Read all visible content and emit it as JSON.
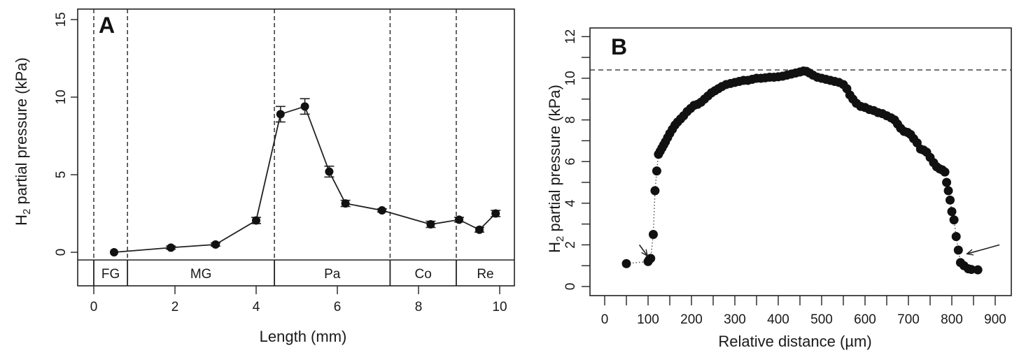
{
  "chart_data": [
    {
      "panel": "A",
      "type": "line",
      "title": "",
      "panel_label": "A",
      "xlabel": "Length (mm)",
      "ylabel_main": "H",
      "ylabel_sub": "2",
      "ylabel_rest": " partial pressure (kPa)",
      "xlim": [
        -0.4,
        10.4
      ],
      "ylim": [
        -0.5,
        15.5
      ],
      "xticks": [
        0,
        2,
        4,
        6,
        8,
        10
      ],
      "xtick_labels": [
        "0",
        "2",
        "4",
        "6",
        "8",
        "10"
      ],
      "yticks": [
        0,
        5,
        10,
        15
      ],
      "ytick_labels": [
        "0",
        "5",
        "10",
        "15"
      ],
      "grid": false,
      "series": [
        {
          "name": "H2 partial pressure",
          "marker": "filled-circle",
          "x": [
            0.5,
            1.9,
            3.0,
            4.0,
            4.6,
            5.2,
            5.8,
            6.2,
            7.1,
            8.3,
            9.0,
            9.5,
            9.9
          ],
          "y": [
            0.0,
            0.3,
            0.5,
            2.05,
            8.9,
            9.4,
            5.2,
            3.15,
            2.7,
            1.8,
            2.1,
            1.45,
            2.5
          ],
          "error": [
            0.05,
            0.1,
            0.1,
            0.2,
            0.5,
            0.5,
            0.35,
            0.2,
            0.1,
            0.2,
            0.15,
            0.15,
            0.2
          ]
        }
      ],
      "region_boundaries": [
        0,
        0.83,
        4.45,
        7.3,
        8.93
      ],
      "regions": [
        {
          "label": "FG",
          "from": 0,
          "to": 0.83
        },
        {
          "label": "MG",
          "from": 0.83,
          "to": 4.45
        },
        {
          "label": "Pa",
          "from": 4.45,
          "to": 7.3
        },
        {
          "label": "Co",
          "from": 7.3,
          "to": 8.93
        },
        {
          "label": "Re",
          "from": 8.93,
          "to": 10.4
        }
      ]
    },
    {
      "panel": "B",
      "type": "scatter",
      "title": "",
      "panel_label": "B",
      "xlabel": "Relative distance (µm)",
      "ylabel_main": "H",
      "ylabel_sub": "2",
      "ylabel_rest": " partial pressure (kPa)",
      "xlim": [
        -35,
        935
      ],
      "ylim": [
        -0.45,
        12.45
      ],
      "xticks": [
        0,
        100,
        200,
        300,
        400,
        500,
        600,
        700,
        800,
        900
      ],
      "xtick_labels": [
        "0",
        "100",
        "200",
        "300",
        "400",
        "500",
        "600",
        "700",
        "800",
        "900"
      ],
      "x_minor_ticks": [
        50,
        150,
        250,
        350,
        450,
        550,
        650,
        750,
        850
      ],
      "yticks": [
        0,
        2,
        4,
        6,
        8,
        10,
        12
      ],
      "ytick_labels": [
        "0",
        "2",
        "4",
        "6",
        "8",
        "10",
        "12"
      ],
      "y_minor_ticks": [
        1,
        3,
        5,
        7,
        9,
        11
      ],
      "grid": false,
      "reference_line_y": 10.4,
      "arrows": [
        {
          "points_to": [
            105,
            1.4
          ],
          "from": [
            80,
            2.0
          ]
        },
        {
          "points_to": [
            825,
            1.5
          ],
          "from": [
            910,
            2.0
          ]
        }
      ],
      "series": [
        {
          "name": "H2 partial pressure profile",
          "marker": "filled-circle",
          "x": [
            50,
            100,
            103,
            106,
            112,
            116,
            120,
            124,
            128,
            132,
            136,
            140,
            145,
            150,
            156,
            162,
            168,
            175,
            182,
            190,
            198,
            206,
            214,
            222,
            230,
            238,
            246,
            254,
            262,
            270,
            280,
            290,
            300,
            310,
            320,
            330,
            340,
            350,
            360,
            370,
            380,
            390,
            400,
            410,
            420,
            430,
            440,
            450,
            458,
            465,
            472,
            480,
            490,
            500,
            510,
            520,
            530,
            540,
            550,
            558,
            565,
            572,
            580,
            590,
            600,
            610,
            620,
            630,
            640,
            650,
            660,
            668,
            675,
            682,
            690,
            698,
            705,
            712,
            720,
            728,
            735,
            742,
            750,
            758,
            765,
            772,
            778,
            784,
            788,
            792,
            796,
            800,
            805,
            810,
            815,
            820,
            828,
            838,
            845,
            860
          ],
          "y": [
            1.1,
            1.2,
            1.3,
            1.35,
            2.5,
            4.6,
            5.55,
            6.35,
            6.5,
            6.65,
            6.8,
            6.95,
            7.15,
            7.35,
            7.55,
            7.75,
            7.9,
            8.05,
            8.2,
            8.4,
            8.55,
            8.7,
            8.75,
            8.85,
            9.0,
            9.15,
            9.3,
            9.4,
            9.5,
            9.6,
            9.7,
            9.75,
            9.8,
            9.85,
            9.9,
            9.9,
            9.95,
            10.0,
            10.0,
            10.02,
            10.05,
            10.05,
            10.07,
            10.1,
            10.15,
            10.2,
            10.25,
            10.3,
            10.35,
            10.33,
            10.25,
            10.15,
            10.05,
            10.0,
            9.95,
            9.9,
            9.85,
            9.8,
            9.7,
            9.5,
            9.2,
            9.0,
            8.8,
            8.65,
            8.6,
            8.5,
            8.45,
            8.35,
            8.3,
            8.2,
            8.1,
            8.0,
            7.8,
            7.6,
            7.45,
            7.4,
            7.3,
            7.1,
            6.9,
            6.6,
            6.55,
            6.45,
            6.2,
            5.95,
            5.75,
            5.65,
            5.6,
            5.5,
            5.0,
            4.6,
            4.15,
            3.6,
            3.2,
            2.4,
            1.75,
            1.15,
            1.0,
            0.85,
            0.82,
            0.8
          ]
        }
      ]
    }
  ]
}
